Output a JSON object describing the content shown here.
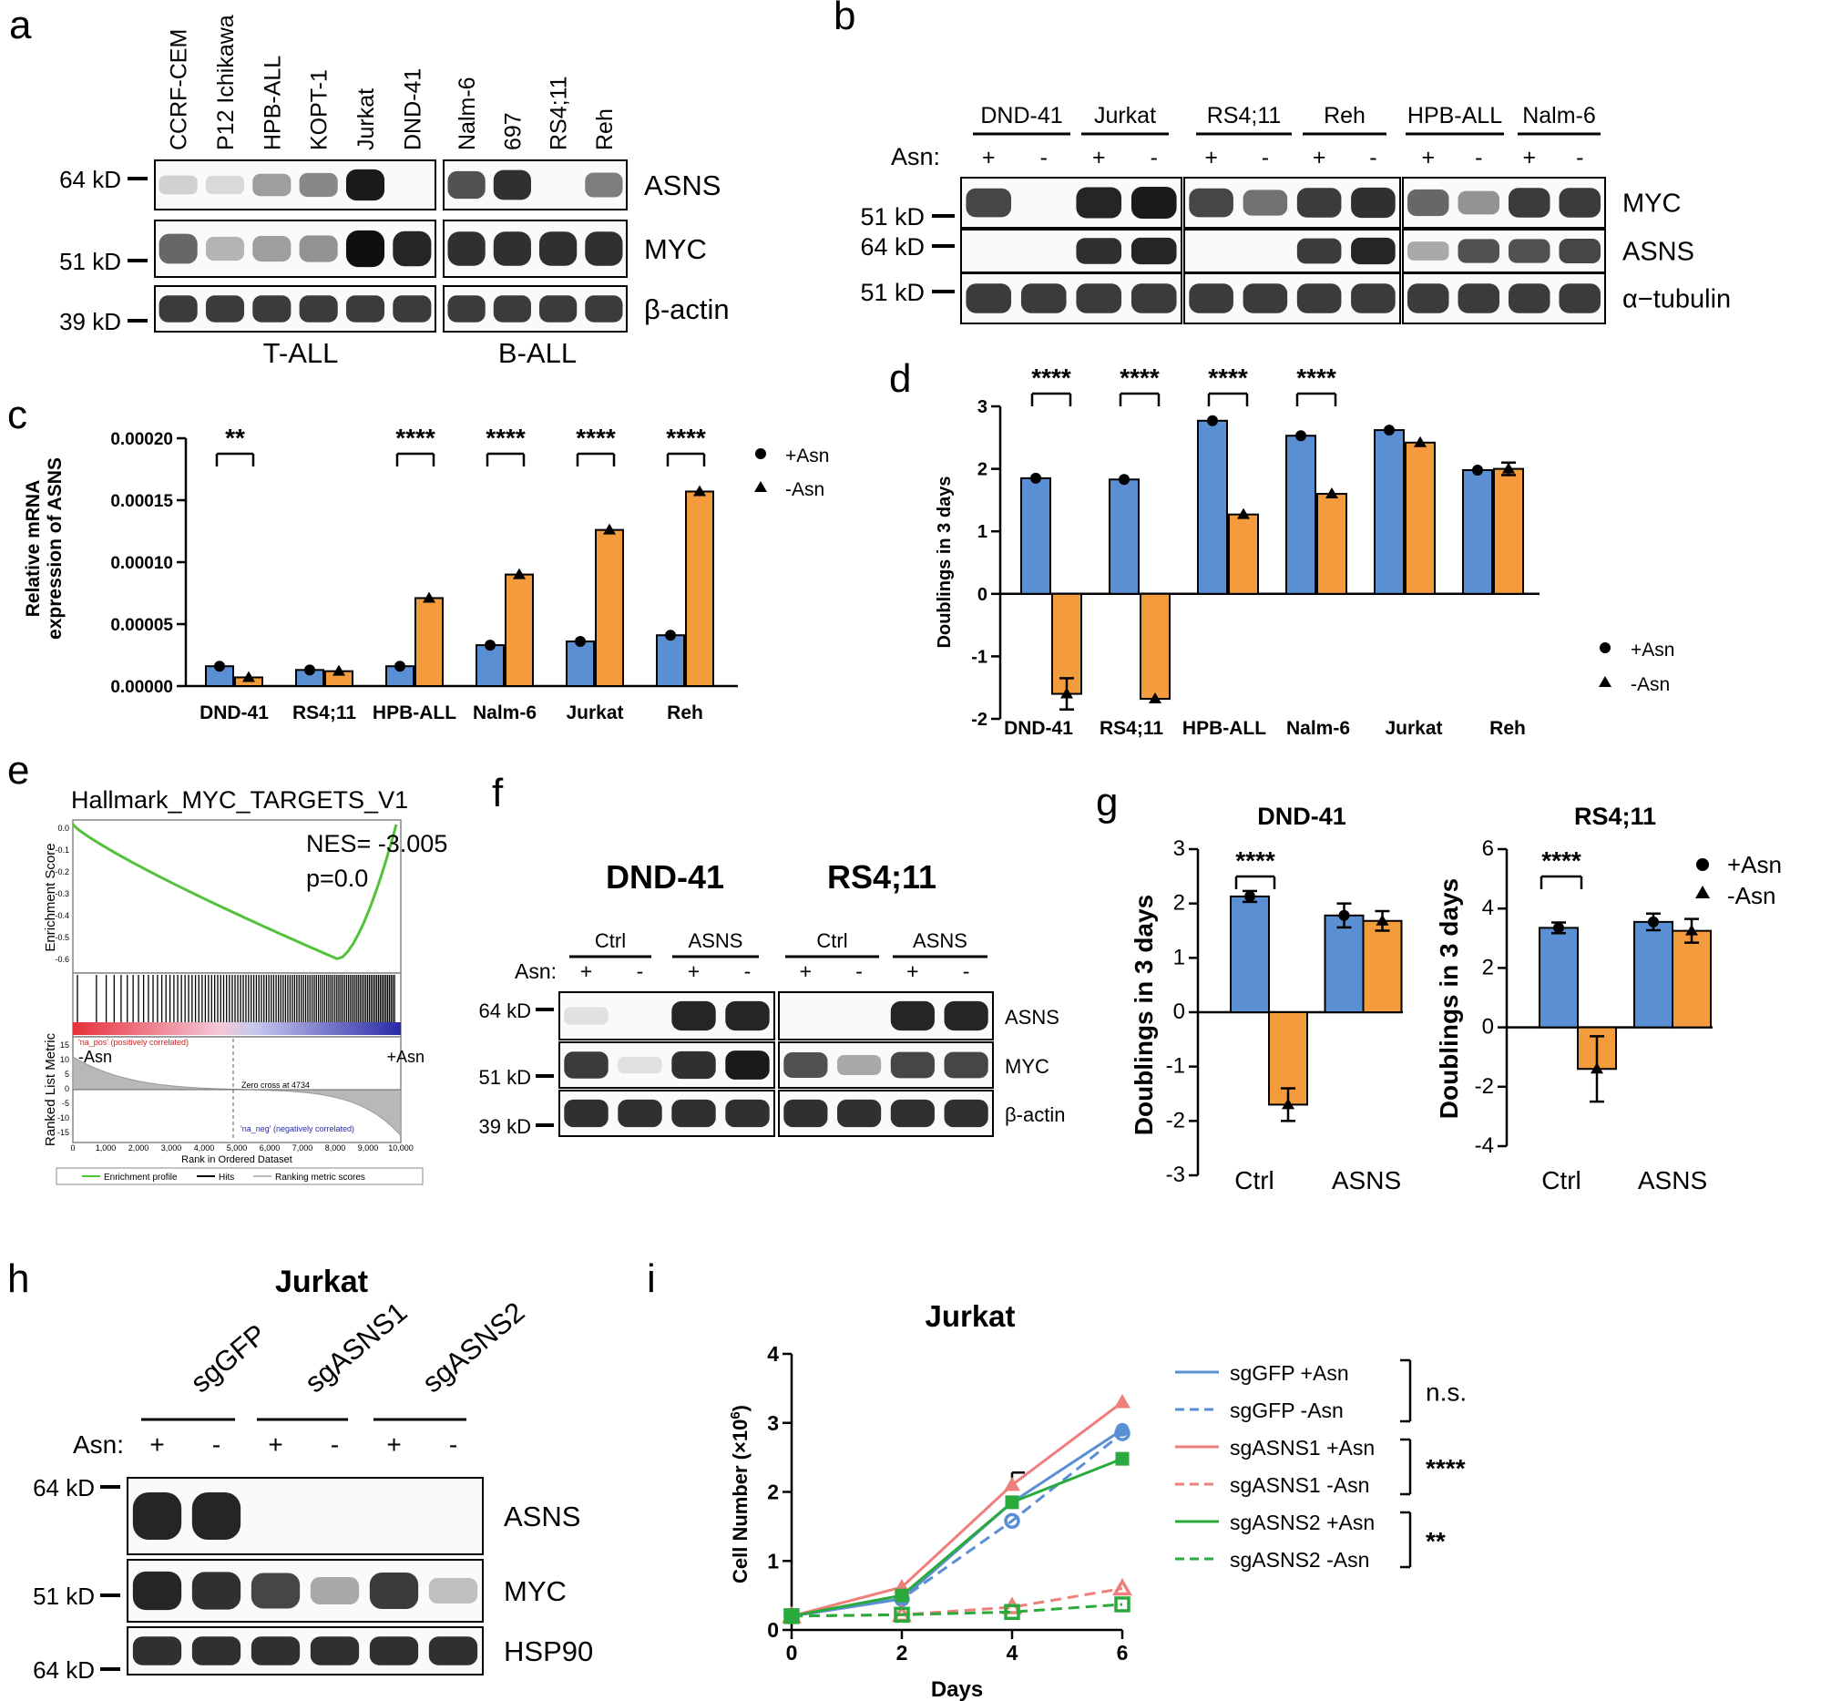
{
  "panels": {
    "a": {
      "letter": "a",
      "lanes": [
        "CCRF-CEM",
        "P12 Ichikawa",
        "HPB-ALL",
        "KOPT-1",
        "Jurkat",
        "DND-41",
        "Nalm-6",
        "697",
        "RS4;11",
        "Reh"
      ],
      "markers": [
        "64 kD",
        "51 kD",
        "39 kD"
      ],
      "proteins": [
        "ASNS",
        "MYC",
        "β-actin"
      ],
      "groups": [
        "T-ALL",
        "B-ALL"
      ],
      "blots": {
        "ASNS": [
          0.12,
          0.08,
          0.35,
          0.45,
          0.95,
          0.0,
          0.7,
          0.85,
          0.0,
          0.5
        ],
        "MYC": [
          0.6,
          0.25,
          0.35,
          0.4,
          1.0,
          0.9,
          0.85,
          0.85,
          0.85,
          0.85
        ],
        "actin": [
          0.8,
          0.8,
          0.8,
          0.8,
          0.8,
          0.8,
          0.8,
          0.8,
          0.8,
          0.8
        ]
      }
    },
    "b": {
      "letter": "b",
      "cells": [
        "DND-41",
        "Jurkat",
        "RS4;11",
        "Reh",
        "HPB-ALL",
        "Nalm-6"
      ],
      "asn_label": "Asn:",
      "signs": [
        "+",
        "-",
        "+",
        "-",
        "+",
        "-",
        "+",
        "-",
        "+",
        "-",
        "+",
        "-"
      ],
      "markers": [
        "51 kD",
        "64 kD",
        "51 kD"
      ],
      "proteins": [
        "MYC",
        "ASNS",
        "α−tubulin"
      ],
      "blots": {
        "MYC": [
          0.75,
          0.0,
          0.9,
          0.95,
          0.75,
          0.55,
          0.8,
          0.85,
          0.6,
          0.4,
          0.8,
          0.8
        ],
        "ASNS": [
          0.0,
          0.0,
          0.85,
          0.9,
          0.0,
          0.0,
          0.8,
          0.9,
          0.3,
          0.7,
          0.7,
          0.75
        ],
        "tubulin": [
          0.8,
          0.8,
          0.8,
          0.8,
          0.8,
          0.8,
          0.8,
          0.8,
          0.8,
          0.8,
          0.8,
          0.8
        ]
      }
    },
    "c": {
      "letter": "c",
      "ylabel_line1": "Relative mRNA",
      "ylabel_line2": "expression of  ASNS",
      "legend": [
        "+Asn",
        "-Asn"
      ],
      "sig": [
        "**",
        "****",
        "****",
        "****",
        "****"
      ]
    },
    "d": {
      "letter": "d",
      "ylabel": "Doublings in 3 days",
      "legend": [
        "+Asn",
        "-Asn"
      ],
      "sig": [
        "****",
        "****",
        "****",
        "****"
      ]
    },
    "e": {
      "letter": "e",
      "title": "Hallmark_MYC_TARGETS_V1",
      "nes": "NES= -3.005",
      "p": "p=0.0",
      "es_label": "Enrichment Score",
      "rlm_label": "Ranked List Metric",
      "neg_label": "-Asn",
      "pos_label": "+Asn",
      "na_pos": "'na_pos' (positively correlated)",
      "na_neg": "'na_neg' (negatively correlated)",
      "zero_cross": "Zero cross at 4734",
      "xlabel": "Rank in Ordered Dataset",
      "es_ticks": [
        "0.0",
        "-0.1",
        "-0.2",
        "-0.3",
        "-0.4",
        "-0.5",
        "-0.6"
      ],
      "rlm_ticks": [
        "15",
        "10",
        "5",
        "0",
        "-5",
        "-10",
        "-15"
      ],
      "x_ticks": [
        "0",
        "1,000",
        "2,000",
        "3,000",
        "4,000",
        "5,000",
        "6,000",
        "7,000",
        "8,000",
        "9,000",
        "10,000"
      ],
      "legend": [
        "Enrichment profile",
        "Hits",
        "Ranking metric scores"
      ]
    },
    "f": {
      "letter": "f",
      "cell_titles": [
        "DND-41",
        "RS4;11"
      ],
      "groups": [
        "Ctrl",
        "ASNS",
        "Ctrl",
        "ASNS"
      ],
      "asn_label": "Asn:",
      "signs": [
        "+",
        "-",
        "+",
        "-",
        "+",
        "-",
        "+",
        "-"
      ],
      "markers": [
        "64 kD",
        "51 kD",
        "39 kD"
      ],
      "proteins": [
        "ASNS",
        "MYC",
        "β-actin"
      ],
      "blots": {
        "ASNS": [
          0.05,
          0.0,
          0.9,
          0.9,
          0.0,
          0.0,
          0.9,
          0.9
        ],
        "MYC": [
          0.8,
          0.05,
          0.85,
          0.95,
          0.7,
          0.3,
          0.75,
          0.75
        ],
        "actin": [
          0.85,
          0.85,
          0.85,
          0.85,
          0.85,
          0.85,
          0.85,
          0.85
        ]
      }
    },
    "g": {
      "letter": "g",
      "ylabel": "Doublings in 3 days",
      "legend": [
        "+Asn",
        "-Asn"
      ],
      "sig": "****"
    },
    "h": {
      "letter": "h",
      "title": "Jurkat",
      "groups": [
        "sgGFP",
        "sgASNS1",
        "sgASNS2"
      ],
      "asn_label": "Asn:",
      "signs": [
        "+",
        "-",
        "+",
        "-",
        "+",
        "-"
      ],
      "markers": [
        "64 kD",
        "51 kD",
        "64 kD"
      ],
      "proteins": [
        "ASNS",
        "MYC",
        "HSP90"
      ],
      "blots": {
        "ASNS": [
          0.9,
          0.9,
          0.0,
          0.0,
          0.0,
          0.0
        ],
        "MYC": [
          0.9,
          0.85,
          0.75,
          0.3,
          0.8,
          0.2
        ],
        "HSP90": [
          0.85,
          0.85,
          0.85,
          0.85,
          0.85,
          0.85
        ]
      }
    },
    "i": {
      "letter": "i",
      "title": "Jurkat",
      "xlabel": "Days",
      "ylabel": "Cell Number (×10",
      "ylabel_sup": "6",
      "ylabel_end": ")",
      "sig": [
        "n.s.",
        "****",
        "**"
      ]
    }
  },
  "chart_data": [
    {
      "panel": "c",
      "type": "bar",
      "categories": [
        "DND-41",
        "RS4;11",
        "HPB-ALL",
        "Nalm-6",
        "Jurkat",
        "Reh"
      ],
      "series": [
        {
          "name": "+Asn",
          "values": [
            1.6e-05,
            1.3e-05,
            1.6e-05,
            3.3e-05,
            3.6e-05,
            4.1e-05
          ],
          "color": "#5b8fd4"
        },
        {
          "name": "-Asn",
          "values": [
            7e-06,
            1.2e-05,
            7.1e-05,
            9e-05,
            0.000126,
            0.000157
          ],
          "color": "#f39b3d"
        }
      ],
      "ylim": [
        0,
        0.0002
      ],
      "yticks": [
        "0.00000",
        "0.00005",
        "0.00010",
        "0.00015",
        "0.00020"
      ],
      "ytick_values": [
        0,
        5e-05,
        0.0001,
        0.00015,
        0.0002
      ]
    },
    {
      "panel": "d",
      "type": "bar",
      "categories": [
        "DND-41",
        "RS4;11",
        "HPB-ALL",
        "Nalm-6",
        "Jurkat",
        "Reh"
      ],
      "series": [
        {
          "name": "+Asn",
          "values": [
            1.85,
            1.83,
            2.77,
            2.53,
            2.62,
            1.98
          ],
          "color": "#5b8fd4"
        },
        {
          "name": "-Asn",
          "values": [
            -1.6,
            -1.68,
            1.27,
            1.6,
            2.42,
            2.0
          ],
          "color": "#f39b3d"
        }
      ],
      "ylim": [
        -2,
        3
      ],
      "yticks": [
        "-2",
        "-1",
        "0",
        "1",
        "2",
        "3"
      ],
      "ytick_values": [
        -2,
        -1,
        0,
        1,
        2,
        3
      ]
    },
    {
      "panel": "g",
      "type": "bar",
      "title": "DND-41",
      "categories": [
        "Ctrl",
        "ASNS"
      ],
      "series": [
        {
          "name": "+Asn",
          "values": [
            2.13,
            1.78
          ],
          "color": "#5b8fd4"
        },
        {
          "name": "-Asn",
          "values": [
            -1.7,
            1.68
          ],
          "color": "#f39b3d"
        }
      ],
      "ylim": [
        -3,
        3
      ],
      "yticks": [
        "-3",
        "-2",
        "-1",
        "0",
        "1",
        "2",
        "3"
      ],
      "ytick_values": [
        -3,
        -2,
        -1,
        0,
        1,
        2,
        3
      ]
    },
    {
      "panel": "g",
      "type": "bar",
      "title": "RS4;11",
      "categories": [
        "Ctrl",
        "ASNS"
      ],
      "series": [
        {
          "name": "+Asn",
          "values": [
            3.35,
            3.55
          ],
          "color": "#5b8fd4"
        },
        {
          "name": "-Asn",
          "values": [
            -1.4,
            3.25
          ],
          "color": "#f39b3d"
        }
      ],
      "ylim": [
        -4,
        6
      ],
      "yticks": [
        "-4",
        "-2",
        "0",
        "2",
        "4",
        "6"
      ],
      "ytick_values": [
        -4,
        -2,
        0,
        2,
        4,
        6
      ]
    },
    {
      "panel": "i",
      "type": "line",
      "title": "Jurkat",
      "x": [
        0,
        2,
        4,
        6
      ],
      "series": [
        {
          "name": "sgGFP +Asn",
          "values": [
            0.2,
            0.45,
            1.85,
            2.9
          ],
          "color": "#5b8fd4",
          "dashed": false,
          "marker": "circle"
        },
        {
          "name": "sgGFP -Asn",
          "values": [
            0.2,
            0.45,
            1.58,
            2.85
          ],
          "color": "#5b8fd4",
          "dashed": true,
          "marker": "circle-open"
        },
        {
          "name": "sgASNS1 +Asn",
          "values": [
            0.2,
            0.62,
            2.1,
            3.3
          ],
          "color": "#ef7f7a",
          "dashed": false,
          "marker": "triangle"
        },
        {
          "name": "sgASNS1 -Asn",
          "values": [
            0.2,
            0.22,
            0.33,
            0.6
          ],
          "color": "#ef7f7a",
          "dashed": true,
          "marker": "triangle-open"
        },
        {
          "name": "sgASNS2 +Asn",
          "values": [
            0.2,
            0.5,
            1.85,
            2.48
          ],
          "color": "#2aaa3c",
          "dashed": false,
          "marker": "square"
        },
        {
          "name": "sgASNS2 -Asn",
          "values": [
            0.2,
            0.22,
            0.26,
            0.37
          ],
          "color": "#2aaa3c",
          "dashed": true,
          "marker": "square-open"
        }
      ],
      "xlim": [
        0,
        6
      ],
      "ylim": [
        0,
        4
      ],
      "xticks": [
        "0",
        "2",
        "4",
        "6"
      ],
      "yticks": [
        "0",
        "1",
        "2",
        "3",
        "4"
      ]
    }
  ]
}
